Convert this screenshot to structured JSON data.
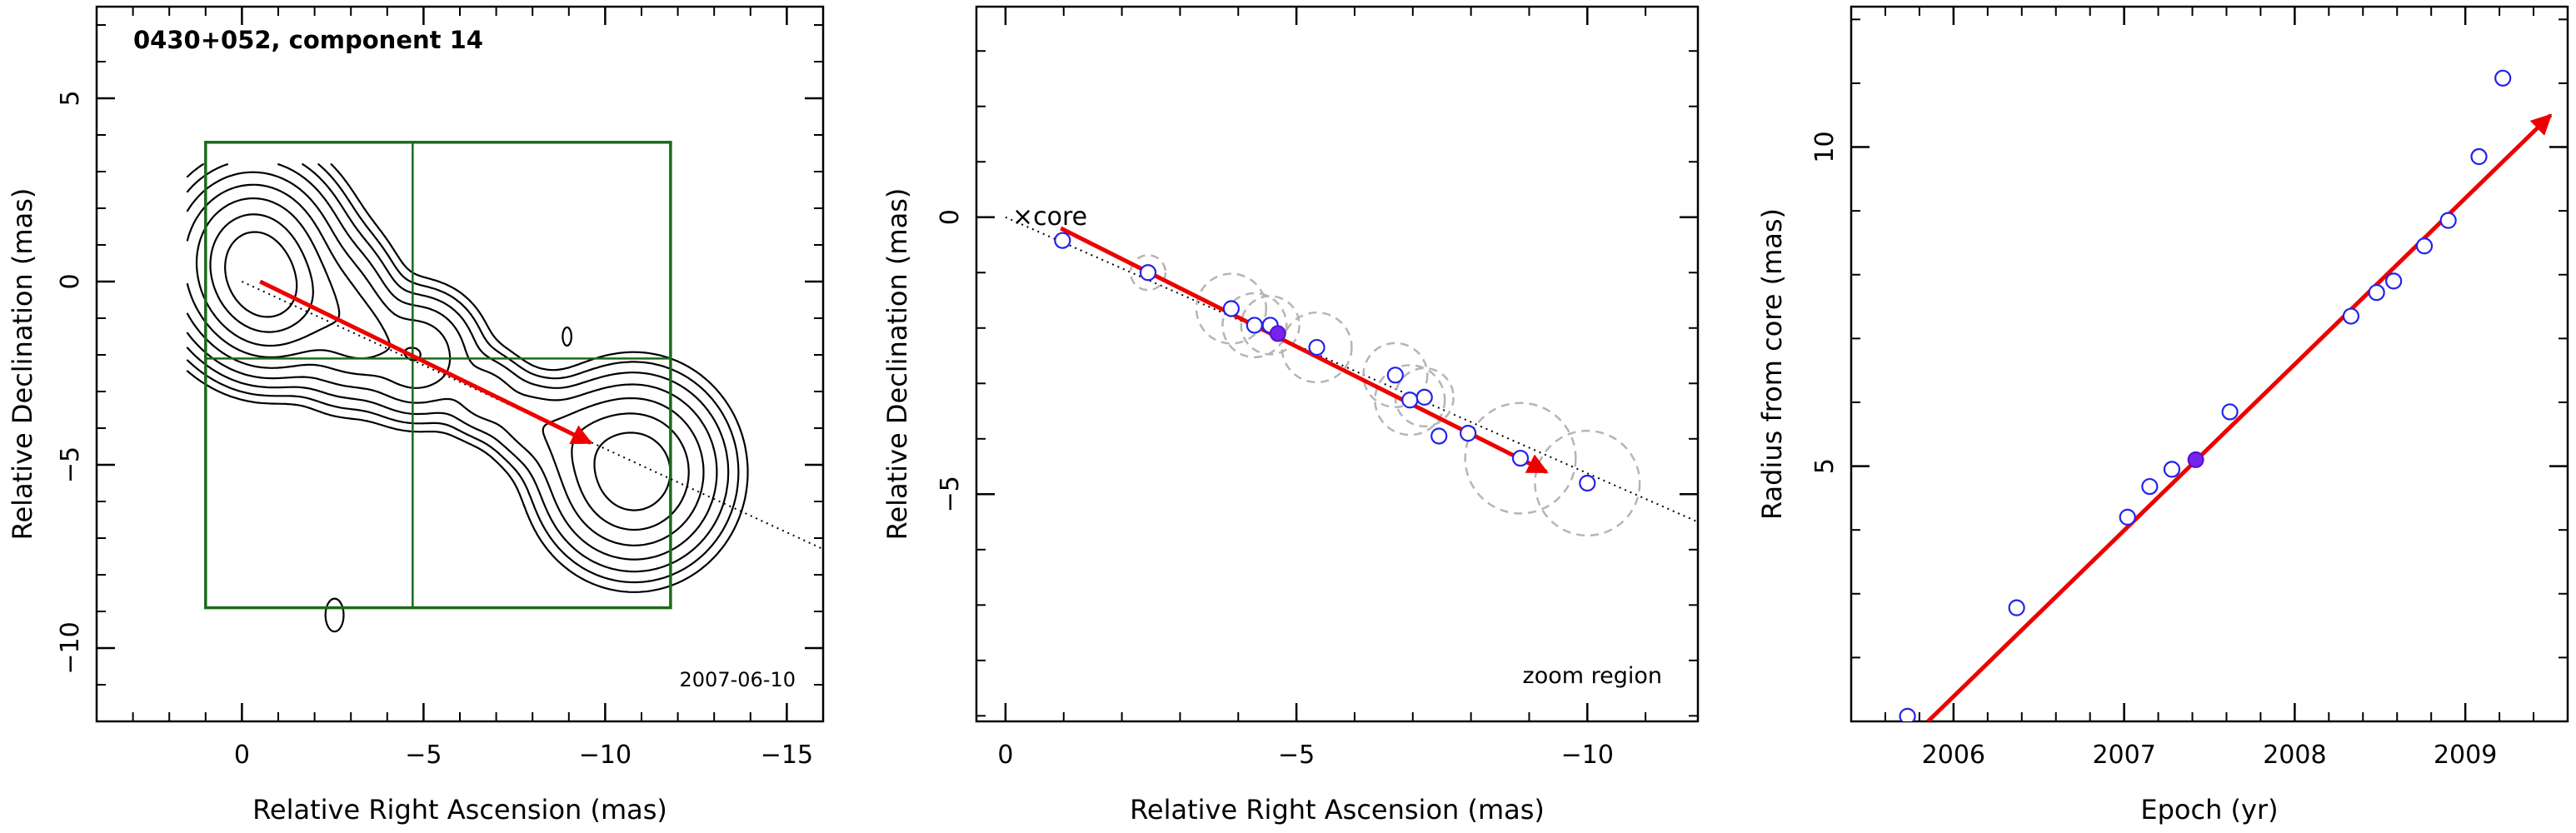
{
  "chart_data": [
    {
      "type": "contour",
      "title": "0430+052, component 14",
      "annotation": "2007-06-10",
      "xlabel": "Relative Right Ascension (mas)",
      "ylabel": "Relative Declination (mas)",
      "xlim": [
        4,
        -16
      ],
      "ylim": [
        -12,
        7.5
      ],
      "xticks": [
        0,
        -5,
        -10,
        -15
      ],
      "xtick_labels": [
        "0",
        "−5",
        "−10",
        "−15"
      ],
      "yticks": [
        -10,
        -5,
        0,
        5
      ],
      "ytick_labels": [
        "−10",
        "−5",
        "0",
        "5"
      ],
      "contour_sources": [
        {
          "x": 0.3,
          "y": 0.6,
          "sx": 1.0,
          "sy": 1.1,
          "amp": 1.0
        },
        {
          "x": 0.9,
          "y": -0.5,
          "sx": 0.9,
          "sy": 0.9,
          "amp": 0.6
        },
        {
          "x": 2.8,
          "y": -1.0,
          "sx": 0.7,
          "sy": 1.0,
          "amp": 0.2
        },
        {
          "x": 3.4,
          "y": -1.5,
          "sx": 0.5,
          "sy": 0.6,
          "amp": 0.1
        },
        {
          "x": 4.8,
          "y": -2.0,
          "sx": 0.8,
          "sy": 0.8,
          "amp": 0.18
        },
        {
          "x": 6.7,
          "y": -3.1,
          "sx": 0.6,
          "sy": 0.6,
          "amp": 0.07
        },
        {
          "x": 7.9,
          "y": -3.8,
          "sx": 0.6,
          "sy": 0.6,
          "amp": 0.06
        },
        {
          "x": 9.2,
          "y": -4.3,
          "sx": 0.8,
          "sy": 0.7,
          "amp": 0.07
        },
        {
          "x": 10.8,
          "y": -5.2,
          "sx": 1.05,
          "sy": 1.1,
          "amp": 0.5
        }
      ],
      "contour_levels": [
        0.006,
        0.012,
        0.024,
        0.048,
        0.096,
        0.18,
        0.32,
        0.55,
        0.85
      ],
      "small_contours": [
        {
          "x": -2.55,
          "y": -9.1,
          "rx": 0.25,
          "ry": 0.45
        },
        {
          "x": -8.95,
          "y": -1.5,
          "rx": 0.12,
          "ry": 0.25
        }
      ],
      "zoom_box": {
        "x": [
          1.0,
          -11.8
        ],
        "y": [
          -8.9,
          3.8
        ],
        "divider_x": -4.7,
        "divider_y": -2.1
      },
      "jet_axis": {
        "from": [
          0,
          0
        ],
        "to": [
          -16,
          -7.3
        ]
      },
      "vector": {
        "from": [
          -0.5,
          0.0
        ],
        "to": [
          -9.6,
          -4.4
        ]
      }
    },
    {
      "type": "scatter",
      "annotation": "zoom region",
      "core_label": "core",
      "xlabel": "Relative Right Ascension (mas)",
      "ylabel": "Relative Declination (mas)",
      "xlim": [
        0.5,
        -11.9
      ],
      "ylim": [
        -9.1,
        3.8
      ],
      "xticks": [
        0,
        -5,
        -10
      ],
      "xtick_labels": [
        "0",
        "−5",
        "−10"
      ],
      "yticks": [
        -5,
        0
      ],
      "ytick_labels": [
        "−5",
        "0"
      ],
      "points": [
        {
          "x": -0.98,
          "y": -0.42,
          "r": 0.0
        },
        {
          "x": -2.45,
          "y": -1.0,
          "r": 0.3
        },
        {
          "x": -3.88,
          "y": -1.65,
          "r": 0.6
        },
        {
          "x": -4.28,
          "y": -1.95,
          "r": 0.55
        },
        {
          "x": -4.55,
          "y": -1.95,
          "r": 0.5
        },
        {
          "x": -5.35,
          "y": -2.35,
          "r": 0.6
        },
        {
          "x": -6.7,
          "y": -2.85,
          "r": 0.55
        },
        {
          "x": -6.95,
          "y": -3.3,
          "r": 0.6
        },
        {
          "x": -7.2,
          "y": -3.25,
          "r": 0.5
        },
        {
          "x": -7.45,
          "y": -3.95,
          "r": 0.0
        },
        {
          "x": -7.95,
          "y": -3.9,
          "r": 0.0
        },
        {
          "x": -8.85,
          "y": -4.35,
          "r": 0.95
        },
        {
          "x": -10.0,
          "y": -4.8,
          "r": 0.9
        }
      ],
      "highlight_point": {
        "x": -4.68,
        "y": -2.1
      },
      "jet_axis": {
        "from": [
          0,
          0
        ],
        "to": [
          -11.9,
          -5.5
        ]
      },
      "vector": {
        "from": [
          -0.95,
          -0.2
        ],
        "to": [
          -9.3,
          -4.6
        ]
      }
    },
    {
      "type": "scatter",
      "xlabel": "Epoch (yr)",
      "ylabel": "Radius from core (mas)",
      "xlim": [
        2005.4,
        2009.6
      ],
      "ylim": [
        1.0,
        12.2
      ],
      "xticks": [
        2006,
        2007,
        2008,
        2009
      ],
      "xtick_labels": [
        "2006",
        "2007",
        "2008",
        "2009"
      ],
      "yticks": [
        5,
        10
      ],
      "ytick_labels": [
        "5",
        "10"
      ],
      "points": [
        {
          "x": 2005.73,
          "y": 1.08
        },
        {
          "x": 2006.37,
          "y": 2.78
        },
        {
          "x": 2007.02,
          "y": 4.2
        },
        {
          "x": 2007.15,
          "y": 4.68
        },
        {
          "x": 2007.28,
          "y": 4.95
        },
        {
          "x": 2007.62,
          "y": 5.85
        },
        {
          "x": 2008.33,
          "y": 7.35
        },
        {
          "x": 2008.48,
          "y": 7.72
        },
        {
          "x": 2008.58,
          "y": 7.9
        },
        {
          "x": 2008.76,
          "y": 8.45
        },
        {
          "x": 2008.9,
          "y": 8.85
        },
        {
          "x": 2009.08,
          "y": 9.85
        },
        {
          "x": 2009.22,
          "y": 11.08
        }
      ],
      "highlight_point": {
        "x": 2007.42,
        "y": 5.1
      },
      "vector": {
        "from": [
          2005.85,
          1.0
        ],
        "to": [
          2009.5,
          10.5
        ]
      }
    }
  ]
}
